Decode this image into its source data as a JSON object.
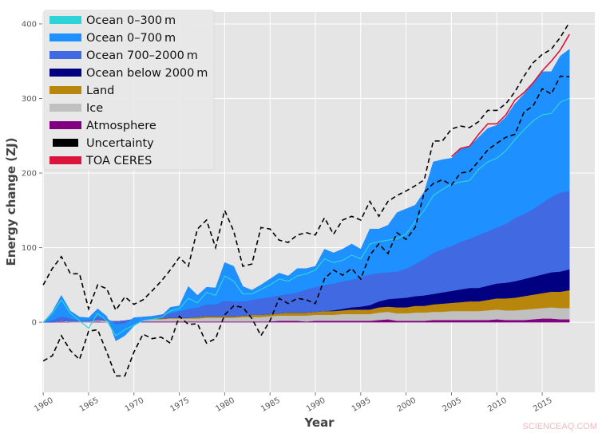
{
  "chart_data": {
    "type": "area",
    "xlabel": "Year",
    "ylabel": "Energy change (ZJ)",
    "xlim": [
      1959.9,
      2020.8
    ],
    "ylim": [
      -94,
      416
    ],
    "xticks": [
      1960,
      1965,
      1970,
      1975,
      1980,
      1985,
      1990,
      1995,
      2000,
      2005,
      2010,
      2015
    ],
    "yticks": [
      0,
      100,
      200,
      300,
      400
    ],
    "grid": true,
    "legend_position": "top-left",
    "x_start": 1960,
    "x_end": 2018,
    "stack_order": [
      "atmosphere",
      "ice",
      "land",
      "ocean_below_2000",
      "ocean_700_2000",
      "ocean_0_700"
    ],
    "series": {
      "atmosphere": {
        "name": "Atmosphere",
        "color": "#800080",
        "values": [
          0,
          0,
          1,
          0,
          0,
          0,
          1,
          0,
          -1,
          0,
          1,
          1,
          1,
          1,
          1,
          1,
          1,
          1,
          1,
          1,
          1,
          1,
          1,
          1,
          1,
          1,
          2,
          2,
          2,
          1,
          2,
          2,
          2,
          2,
          2,
          2,
          2,
          3,
          4,
          2,
          2,
          2,
          2,
          3,
          3,
          3,
          3,
          3,
          3,
          3,
          4,
          3,
          3,
          3,
          4,
          5,
          5,
          4,
          4
        ]
      },
      "ice": {
        "name": "Ice",
        "color": "#c0c0c0",
        "values": [
          0,
          0,
          1,
          1,
          1,
          1,
          2,
          2,
          2,
          2,
          3,
          3,
          3,
          3,
          4,
          4,
          4,
          4,
          5,
          5,
          5,
          5,
          6,
          6,
          6,
          7,
          7,
          7,
          7,
          8,
          8,
          8,
          8,
          9,
          9,
          9,
          9,
          10,
          10,
          10,
          10,
          11,
          11,
          11,
          11,
          12,
          12,
          12,
          12,
          13,
          13,
          13,
          13,
          14,
          14,
          14,
          15,
          15,
          15
        ]
      },
      "land": {
        "name": "Land",
        "color": "#b8860b",
        "values": [
          0,
          0,
          0,
          0,
          0,
          0,
          0,
          0,
          0,
          0,
          0,
          0,
          1,
          1,
          1,
          1,
          1,
          2,
          2,
          2,
          2,
          2,
          2,
          3,
          3,
          3,
          3,
          4,
          4,
          4,
          4,
          5,
          5,
          5,
          6,
          6,
          6,
          7,
          7,
          8,
          8,
          9,
          9,
          10,
          11,
          11,
          12,
          13,
          13,
          14,
          15,
          16,
          17,
          18,
          19,
          20,
          21,
          22,
          24
        ]
      },
      "ocean_below_2000": {
        "name": "Ocean below 2000 m",
        "color": "#000080",
        "values": [
          0,
          0,
          0,
          0,
          0,
          0,
          0,
          0,
          0,
          0,
          0,
          0,
          0,
          0,
          0,
          0,
          0,
          0,
          0,
          0,
          0,
          0,
          0,
          0,
          0,
          0,
          0,
          0,
          0,
          0,
          0,
          0,
          1,
          2,
          3,
          4,
          6,
          8,
          10,
          12,
          13,
          13,
          14,
          14,
          15,
          16,
          17,
          18,
          18,
          19,
          20,
          21,
          22,
          23,
          24,
          25,
          26,
          27,
          28
        ]
      },
      "ocean_700_2000": {
        "name": "Ocean 700–2000 m",
        "color": "#4169e1",
        "values": [
          0,
          3,
          6,
          4,
          2,
          1,
          5,
          3,
          -4,
          -4,
          2,
          3,
          3,
          5,
          6,
          9,
          12,
          13,
          16,
          16,
          21,
          20,
          19,
          20,
          22,
          23,
          24,
          25,
          27,
          31,
          33,
          35,
          36,
          37,
          37,
          40,
          41,
          38,
          36,
          36,
          39,
          43,
          49,
          55,
          58,
          60,
          64,
          66,
          71,
          73,
          75,
          79,
          85,
          87,
          91,
          96,
          101,
          106,
          105
        ]
      },
      "ocean_0_700": {
        "name": "Ocean 0–700 m",
        "color": "#1e90ff",
        "values": [
          0,
          11,
          28,
          10,
          4,
          4,
          10,
          3,
          -22,
          -16,
          -11,
          -4,
          -3,
          -2,
          8,
          7,
          30,
          16,
          23,
          22,
          51,
          47,
          20,
          13,
          18,
          24,
          30,
          24,
          32,
          28,
          28,
          48,
          41,
          43,
          48,
          37,
          61,
          59,
          63,
          79,
          80,
          79,
          90,
          122,
          120,
          118,
          124,
          124,
          131,
          138,
          137,
          143,
          153,
          161,
          168,
          176,
          168,
          183,
          190
        ]
      },
      "ocean_0_300": {
        "name": "Ocean 0–300 m",
        "color": "#2ed3d8",
        "values": [
          0,
          9,
          22,
          7,
          -1,
          -10,
          4,
          -3,
          -15,
          -8,
          -10,
          -5,
          -4,
          -4,
          3,
          3,
          14,
          6,
          16,
          12,
          33,
          27,
          10,
          8,
          12,
          16,
          22,
          17,
          22,
          21,
          23,
          35,
          28,
          28,
          33,
          24,
          41,
          42,
          43,
          44,
          46,
          57,
          65,
          77,
          80,
          83,
          80,
          78,
          88,
          93,
          93,
          98,
          105,
          113,
          118,
          118,
          112,
          121,
          124
        ]
      },
      "uncertainty_upper": {
        "name": "Uncertainty",
        "color": "#000000",
        "values": [
          50,
          72,
          88,
          65,
          65,
          18,
          50,
          45,
          16,
          34,
          24,
          30,
          42,
          55,
          70,
          87,
          75,
          125,
          137,
          100,
          150,
          122,
          75,
          78,
          127,
          125,
          110,
          107,
          117,
          120,
          117,
          140,
          118,
          137,
          142,
          137,
          162,
          142,
          162,
          170,
          176,
          183,
          191,
          243,
          243,
          259,
          263,
          261,
          269,
          284,
          284,
          293,
          309,
          330,
          348,
          359,
          366,
          382,
          402
        ]
      },
      "uncertainty_lower": {
        "name": "Uncertainty",
        "color": "#000000",
        "values": [
          -52,
          -45,
          -18,
          -38,
          -50,
          -12,
          -10,
          -40,
          -72,
          -72,
          -40,
          -16,
          -22,
          -20,
          -28,
          8,
          -3,
          -2,
          -28,
          -22,
          10,
          22,
          20,
          5,
          -18,
          2,
          32,
          25,
          32,
          30,
          25,
          58,
          70,
          63,
          72,
          58,
          90,
          105,
          92,
          120,
          111,
          127,
          174,
          186,
          191,
          184,
          200,
          202,
          216,
          231,
          240,
          248,
          252,
          282,
          290,
          313,
          306,
          330,
          329
        ]
      },
      "toa_ceres": {
        "name": "TOA CERES",
        "color": "#dc143c",
        "x": [
          2005,
          2006,
          2007,
          2008,
          2009,
          2010,
          2011,
          2012,
          2013,
          2014,
          2015,
          2016,
          2017,
          2018
        ],
        "values": [
          222,
          233,
          236,
          252,
          266,
          266,
          278,
          298,
          308,
          321,
          337,
          350,
          365,
          386
        ]
      }
    },
    "legend": [
      {
        "label": "Ocean 0–300 m",
        "color": "#2ed3d8"
      },
      {
        "label": "Ocean 0–700 m",
        "color": "#1e90ff"
      },
      {
        "label": "Ocean 700–2000 m",
        "color": "#4169e1"
      },
      {
        "label": "Ocean below 2000 m",
        "color": "#000080"
      },
      {
        "label": "Land",
        "color": "#b8860b"
      },
      {
        "label": "Ice",
        "color": "#c0c0c0"
      },
      {
        "label": "Atmosphere",
        "color": "#800080"
      },
      {
        "label": "Uncertainty",
        "color": "#000000"
      },
      {
        "label": "TOA CERES",
        "color": "#dc143c"
      }
    ]
  },
  "watermark": "SCIENCEAQ.COM"
}
